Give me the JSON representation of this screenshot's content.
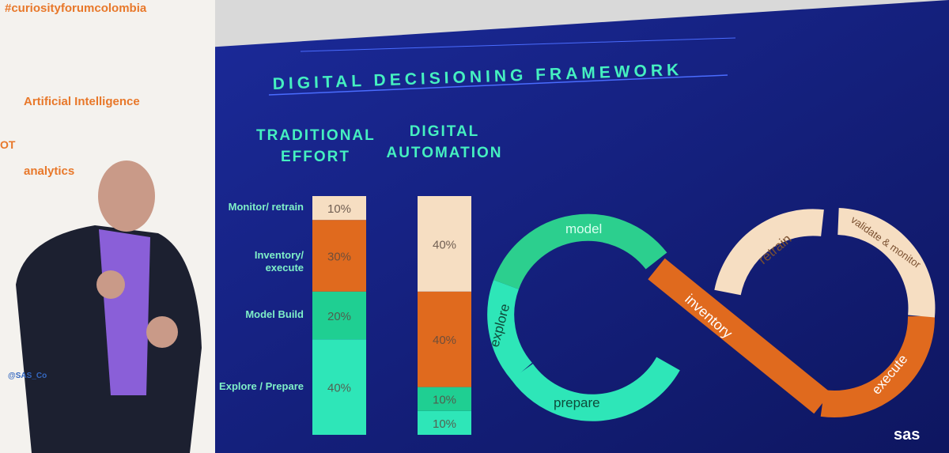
{
  "banner": {
    "hashtag": "#curiosityforumcolombia",
    "topics": [
      "Artificial Intelligence",
      "OT",
      "analytics"
    ],
    "handle": "@SAS_Co"
  },
  "slide": {
    "loop_labels": {
      "model": "model",
      "explore": "explore",
      "prepare": "prepare",
      "inventory": "inventory",
      "retrain": "retrain",
      "validate": "validate & monitor",
      "execute": "execute"
    },
    "logo": "sas"
  },
  "chart_data": {
    "type": "bar",
    "stacked": true,
    "title": "DIGITAL DECISIONING FRAMEWORK",
    "categories": [
      "TRADITIONAL EFFORT",
      "DIGITAL AUTOMATION"
    ],
    "ylim": [
      0,
      100
    ],
    "series": [
      {
        "name": "Explore / Prepare",
        "color": "#2ee6b8",
        "values": [
          40,
          10
        ],
        "value_labels": [
          "40%",
          "10%"
        ]
      },
      {
        "name": "Model Build",
        "color": "#1fcf92",
        "values": [
          20,
          10
        ],
        "value_labels": [
          "20%",
          "10%"
        ]
      },
      {
        "name": "Inventory/ execute",
        "color": "#e06a1e",
        "values": [
          30,
          40
        ],
        "value_labels": [
          "30%",
          "40%"
        ]
      },
      {
        "name": "Monitor/ retrain",
        "color": "#f6dec2",
        "values": [
          10,
          40
        ],
        "value_labels": [
          "10%",
          "40%"
        ]
      }
    ]
  }
}
